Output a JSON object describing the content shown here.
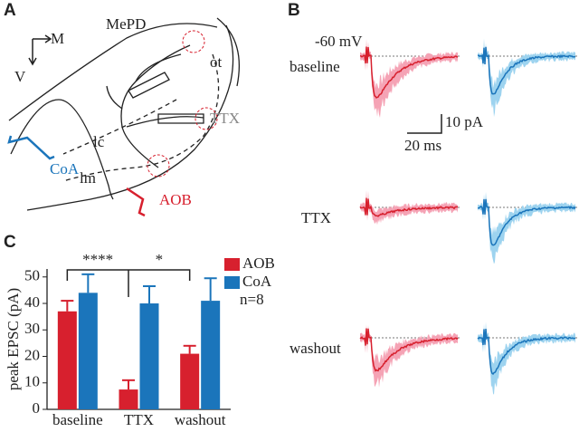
{
  "panels": {
    "a": "A",
    "b": "B",
    "c": "C"
  },
  "diagram": {
    "region": "MePD",
    "tract": "ot",
    "axis_m": "M",
    "axis_v": "V",
    "drug": "TTX",
    "layer_c": "lc",
    "layer_m": "lm",
    "input_coa": "CoA",
    "input_aob": "AOB"
  },
  "traces": {
    "holding": "-60 mV",
    "conditions": [
      "baseline",
      "TTX",
      "washout"
    ],
    "scale_y": "10 pA",
    "scale_x": "20 ms"
  },
  "chart_data": {
    "type": "bar",
    "ylabel": "peak EPSC (pA)",
    "categories": [
      "baseline",
      "TTX",
      "washout"
    ],
    "series": [
      {
        "name": "AOB",
        "color": "#d7202e",
        "values": [
          37,
          7.5,
          21
        ],
        "errors": [
          4,
          3.5,
          3
        ]
      },
      {
        "name": "CoA",
        "color": "#1b75bb",
        "values": [
          44,
          40,
          41
        ],
        "errors": [
          7,
          6.5,
          8.5
        ]
      }
    ],
    "ylim": [
      0,
      53
    ],
    "yticks": [
      0,
      10,
      20,
      30,
      40,
      50
    ],
    "annotations": {
      "n": "n=8",
      "sig_ttx": "****",
      "sig_washout": "*"
    }
  }
}
